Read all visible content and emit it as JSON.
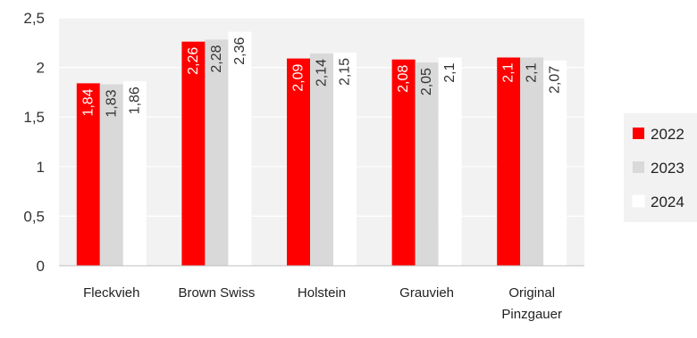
{
  "chart_data": {
    "type": "bar",
    "categories": [
      "Fleckvieh",
      "Brown Swiss",
      "Holstein",
      "Grauvieh",
      "Original Pinzgauer"
    ],
    "category_lines": [
      [
        "Fleckvieh"
      ],
      [
        "Brown Swiss"
      ],
      [
        "Holstein"
      ],
      [
        "Grauvieh"
      ],
      [
        "Original",
        "Pinzgauer"
      ]
    ],
    "series": [
      {
        "name": "2022",
        "values": [
          1.84,
          2.26,
          2.09,
          2.08,
          2.1
        ],
        "labels": [
          "1,84",
          "2,26",
          "2,09",
          "2,08",
          "2,1"
        ],
        "color": "#ff0000",
        "label_color": "#ffffff"
      },
      {
        "name": "2023",
        "values": [
          1.83,
          2.28,
          2.14,
          2.05,
          2.1
        ],
        "labels": [
          "1,83",
          "2,28",
          "2,14",
          "2,05",
          "2,1"
        ],
        "color": "#d9d9d9",
        "label_color": "#333333"
      },
      {
        "name": "2024",
        "values": [
          1.86,
          2.36,
          2.15,
          2.1,
          2.07
        ],
        "labels": [
          "1,86",
          "2,36",
          "2,15",
          "2,1",
          "2,07"
        ],
        "color": "#ffffff",
        "label_color": "#333333"
      }
    ],
    "yticks": [
      0,
      0.5,
      1,
      1.5,
      2,
      2.5
    ],
    "ytick_labels": [
      "0",
      "0,5",
      "1",
      "1,5",
      "2",
      "2,5"
    ],
    "ylim": [
      0,
      2.5
    ],
    "title": "",
    "xlabel": "",
    "ylabel": "",
    "grid": true,
    "legend_position": "right",
    "plot_background": "#f2f2f2",
    "gridline_color": "#ffffff"
  }
}
